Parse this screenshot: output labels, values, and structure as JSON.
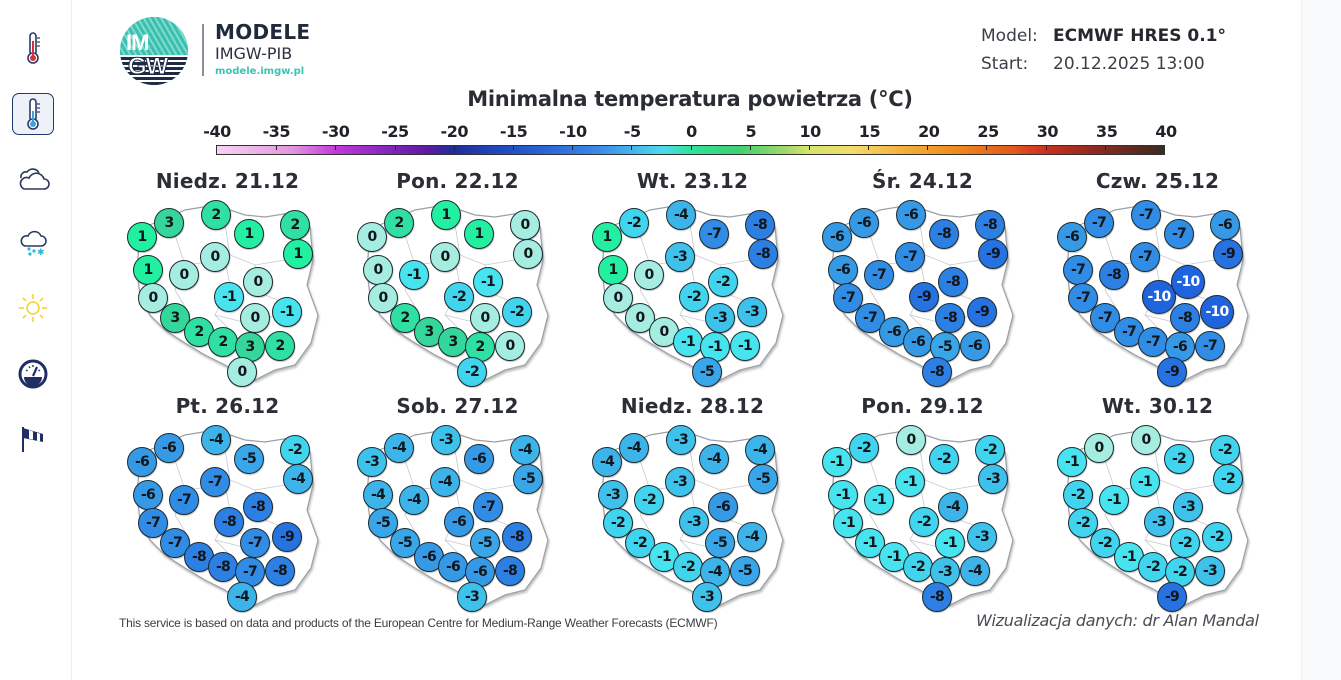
{
  "sidebar": {
    "items": [
      {
        "name": "sidebar-item-temperature",
        "icon": "thermometer-red-icon",
        "active": false
      },
      {
        "name": "sidebar-item-min-temperature",
        "icon": "thermometer-blue-icon",
        "active": true
      },
      {
        "name": "sidebar-item-clouds",
        "icon": "cloud-icon",
        "active": false
      },
      {
        "name": "sidebar-item-precipitation",
        "icon": "snow-cloud-icon",
        "active": false
      },
      {
        "name": "sidebar-item-sunshine",
        "icon": "sun-icon",
        "active": false
      },
      {
        "name": "sidebar-item-pressure",
        "icon": "gauge-icon",
        "active": false
      },
      {
        "name": "sidebar-item-wind",
        "icon": "windsock-icon",
        "active": false
      }
    ]
  },
  "header": {
    "logo_text_top": "IM",
    "logo_text_bottom": "GW",
    "brand_title": "MODELE",
    "brand_subtitle": "IMGW-PIB",
    "brand_url": "modele.imgw.pl",
    "model_label": "Model:",
    "model_value": "ECMWF HRES 0.1°",
    "start_label": "Start:",
    "start_value": "20.12.2025 13:00"
  },
  "chart_title": "Minimalna temperatura powietrza (°C)",
  "colorbar": {
    "ticks": [
      "-40",
      "-35",
      "-30",
      "-25",
      "-20",
      "-15",
      "-10",
      "-5",
      "0",
      "5",
      "10",
      "15",
      "20",
      "25",
      "30",
      "35",
      "40"
    ],
    "min": -40,
    "max": 40
  },
  "colors": {
    "t_ge3": "#34d69a",
    "t_2": "#2fe0a2",
    "t_1": "#22ef9f",
    "t_0": "#a4ede0",
    "t_m1": "#47e3ee",
    "t_m2": "#40d4ee",
    "t_m3": "#3ec2ec",
    "t_m4": "#3cb4ea",
    "t_m5": "#38a6e8",
    "t_m6": "#3599e6",
    "t_m7": "#318ce5",
    "t_m8": "#2c7fe3",
    "t_m9": "#2572e0",
    "t_m10": "#1f64dd"
  },
  "chart_data": {
    "type": "table",
    "title": "Minimalna temperatura powietrza (°C)",
    "stations_order": [
      "NW-coast-1",
      "NW-coast-2",
      "N-coast",
      "N-east-1",
      "NE",
      "W-1",
      "Pomerania-inner",
      "NE-2",
      "W-2",
      "W-3",
      "Central",
      "SW-1",
      "Central-S",
      "E",
      "SW-2",
      "S-central",
      "E-2",
      "S-1",
      "S-2",
      "SE",
      "S-mountain"
    ],
    "days": [
      {
        "label": "Niedz. 21.12",
        "values": [
          1,
          3,
          2,
          1,
          2,
          1,
          0,
          1,
          0,
          0,
          -1,
          3,
          0,
          -1,
          2,
          0,
          2,
          3,
          2,
          2,
          0
        ]
      },
      {
        "label": "Pon. 22.12",
        "values": [
          0,
          2,
          1,
          1,
          0,
          0,
          0,
          0,
          -1,
          0,
          -2,
          2,
          -1,
          -2,
          3,
          0,
          3,
          2,
          0,
          0,
          -2
        ]
      },
      {
        "label": "Wt. 23.12",
        "values": [
          1,
          -2,
          -4,
          -7,
          -8,
          1,
          -3,
          -8,
          0,
          0,
          -2,
          0,
          -2,
          -3,
          0,
          -3,
          -1,
          -1,
          -1,
          -1,
          -5
        ]
      },
      {
        "label": "Śr. 24.12",
        "values": [
          -6,
          -6,
          -6,
          -8,
          -8,
          -6,
          -7,
          -9,
          -7,
          -7,
          -9,
          -7,
          -8,
          -9,
          -6,
          -8,
          -6,
          -5,
          -6,
          -6,
          -8
        ]
      },
      {
        "label": "Czw. 25.12",
        "values": [
          -6,
          -7,
          -7,
          -7,
          -6,
          -7,
          -7,
          -9,
          -8,
          -7,
          -10,
          -7,
          -10,
          -10,
          -7,
          -8,
          -7,
          -6,
          -7,
          -7,
          -9
        ]
      },
      {
        "label": "Pt. 26.12",
        "values": [
          -6,
          -6,
          -4,
          -5,
          -2,
          -6,
          -7,
          -4,
          -7,
          -7,
          -8,
          -7,
          -8,
          -9,
          -8,
          -7,
          -8,
          -7,
          -8,
          -8,
          -4
        ]
      },
      {
        "label": "Sob. 27.12",
        "values": [
          -3,
          -4,
          -3,
          -6,
          -4,
          -4,
          -4,
          -5,
          -4,
          -5,
          -6,
          -5,
          -7,
          -8,
          -6,
          -5,
          -6,
          -6,
          -8,
          -8,
          -3
        ]
      },
      {
        "label": "Niedz. 28.12",
        "values": [
          -4,
          -4,
          -3,
          -4,
          -4,
          -3,
          -3,
          -5,
          -2,
          -2,
          -3,
          -2,
          -6,
          -4,
          -1,
          -5,
          -2,
          -4,
          -5,
          -1,
          -3
        ]
      },
      {
        "label": "Pon. 29.12",
        "values": [
          -1,
          -2,
          0,
          -2,
          -2,
          -1,
          -1,
          -3,
          -1,
          -1,
          -2,
          -1,
          -4,
          -3,
          -1,
          -1,
          -2,
          -3,
          -4,
          -3,
          -8
        ]
      },
      {
        "label": "Wt. 30.12",
        "values": [
          -1,
          0,
          0,
          -2,
          -2,
          -2,
          -1,
          -2,
          -1,
          -2,
          -3,
          -2,
          -3,
          -2,
          -1,
          -2,
          -2,
          -2,
          -3,
          -3,
          -9
        ]
      }
    ]
  },
  "footer": {
    "attribution": "This service is based on data and products of the European Centre for Medium-Range Weather Forecasts (ECMWF)",
    "credit": "Wizualizacja danych: dr Alan Mandal"
  }
}
